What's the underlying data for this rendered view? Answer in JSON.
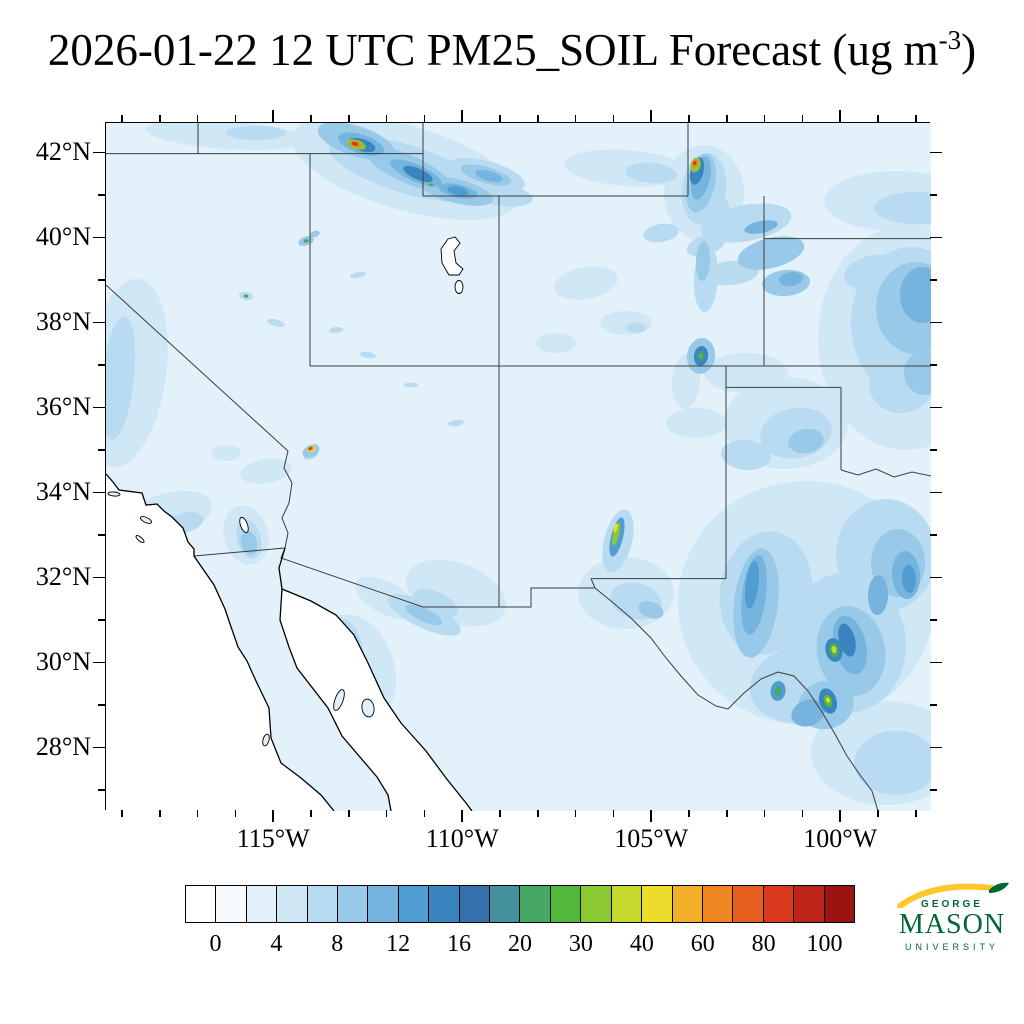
{
  "title": {
    "prefix": "2026-01-22 12 UTC PM25_SOIL Forecast (ug m",
    "exponent": "-3",
    "suffix": ")"
  },
  "axes": {
    "lat_major": [
      {
        "label": "42°N",
        "value": 42
      },
      {
        "label": "40°N",
        "value": 40
      },
      {
        "label": "38°N",
        "value": 38
      },
      {
        "label": "36°N",
        "value": 36
      },
      {
        "label": "34°N",
        "value": 34
      },
      {
        "label": "32°N",
        "value": 32
      },
      {
        "label": "30°N",
        "value": 30
      },
      {
        "label": "28°N",
        "value": 28
      }
    ],
    "lat_minor": [
      41,
      39,
      37,
      35,
      33,
      31,
      29,
      27
    ],
    "lon_major": [
      {
        "label": "115°W",
        "value": 115
      },
      {
        "label": "110°W",
        "value": 110
      },
      {
        "label": "105°W",
        "value": 105
      },
      {
        "label": "100°W",
        "value": 100
      }
    ],
    "lon_minor": [
      119,
      118,
      117,
      116,
      114,
      113,
      112,
      111,
      109,
      108,
      107,
      106,
      104,
      103,
      102,
      101,
      99,
      98
    ]
  },
  "chart_data": {
    "type": "heatmap",
    "title": "2026-01-22 12 UTC PM25_SOIL Forecast (ug m-3)",
    "variable": "PM25_SOIL",
    "units": "ug m-3",
    "forecast_time": "2026-01-22 12 UTC",
    "region": {
      "lon_west": "119.4W",
      "lon_east": "97.5W",
      "lat_south": "26.5N",
      "lat_north": "42.7N"
    },
    "x_tick_labels": [
      "115°W",
      "110°W",
      "105°W",
      "100°W"
    ],
    "y_tick_labels": [
      "42°N",
      "40°N",
      "38°N",
      "36°N",
      "34°N",
      "32°N",
      "30°N",
      "28°N"
    ],
    "colorbar": {
      "levels": [
        0,
        2,
        4,
        6,
        8,
        10,
        12,
        14,
        16,
        18,
        20,
        25,
        30,
        35,
        40,
        50,
        60,
        70,
        80,
        90,
        100
      ],
      "tick_labels": [
        "0",
        "4",
        "8",
        "12",
        "16",
        "20",
        "30",
        "40",
        "60",
        "80",
        "100"
      ],
      "colors": [
        "#ffffff",
        "#f7fbfd",
        "#e3f1fa",
        "#d0e7f6",
        "#b8dbf1",
        "#99c9e8",
        "#75b4de",
        "#519dd2",
        "#3a85c0",
        "#3570ae",
        "#42919b",
        "#46a864",
        "#52b83c",
        "#8cc832",
        "#c8d92e",
        "#ecdc2c",
        "#f2b028",
        "#ee8722",
        "#e55e1f",
        "#d93a1e",
        "#bc2418",
        "#9b1410"
      ]
    },
    "background_range_ug_m3": "0-6 over most of the domain; white over ocean",
    "hotspots": [
      {
        "name": "snake-river-plain-idaho-plume",
        "approx_lon": "113.2W",
        "approx_lat": "42.3N",
        "peak_ug_m3": "80+"
      },
      {
        "name": "wyoming-colorado-border-plume",
        "approx_lon": "105.4W",
        "approx_lat": "41.5N",
        "peak_ug_m3": "60-90"
      },
      {
        "name": "lake-mead-southern-nevada-spot",
        "approx_lon": "114.6W",
        "approx_lat": "35.1N",
        "peak_ug_m3": "80+"
      },
      {
        "name": "central-colorado-spot",
        "approx_lon": "105.5W",
        "approx_lat": "37.4N",
        "peak_ug_m3": "20-30"
      },
      {
        "name": "central-new-mexico-streak",
        "approx_lon": "106.1W",
        "approx_lat": "33.1N",
        "peak_ug_m3": "30-50"
      },
      {
        "name": "west-texas-pecos-streaks",
        "approx_lon": "102.4W",
        "approx_lat": "31.2N",
        "peak_ug_m3": "14-20"
      },
      {
        "name": "southwest-texas-green-spots",
        "approx_lon": "100.3W",
        "approx_lat": "30.3N",
        "peak_ug_m3": "25-40"
      },
      {
        "name": "kansas-great-plains-area",
        "approx_lon": "98.5W",
        "approx_lat": "38N",
        "peak_ug_m3": "8-14"
      },
      {
        "name": "northern-utah-flecks",
        "approx_lon": "114.2W",
        "approx_lat": "39.9N",
        "peak_ug_m3": "20-25"
      }
    ]
  },
  "branding": {
    "line1": "GEORGE",
    "line2": "MASON",
    "line3": "UNIVERSITY",
    "colors": {
      "green": "#006633",
      "gold": "#FFC72C"
    }
  }
}
